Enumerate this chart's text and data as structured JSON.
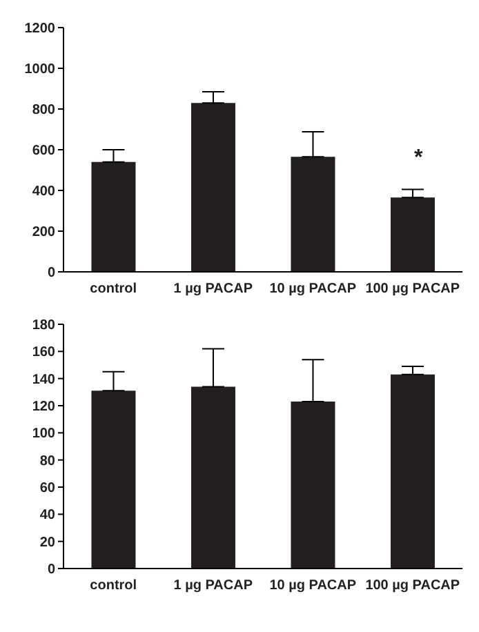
{
  "chart_data": [
    {
      "type": "bar",
      "categories": [
        "control",
        "1 µg PACAP",
        "10 µg PACAP",
        "100 µg PACAP"
      ],
      "values": [
        540,
        830,
        565,
        365
      ],
      "errors": [
        [
          540,
          600
        ],
        [
          830,
          885
        ],
        [
          565,
          688
        ],
        [
          365,
          405
        ]
      ],
      "color": "#231f20",
      "ylim": [
        0,
        1200
      ],
      "yticks": [
        0,
        200,
        400,
        600,
        800,
        1000,
        1200
      ],
      "grid": false,
      "legend": false,
      "annotations": [
        "*"
      ]
    },
    {
      "type": "bar",
      "categories": [
        "control",
        "1 µg PACAP",
        "10 µg PACAP",
        "100 µg PACAP"
      ],
      "values": [
        131,
        134,
        123,
        143
      ],
      "errors": [
        [
          131,
          145
        ],
        [
          134,
          162
        ],
        [
          123,
          154
        ],
        [
          143,
          149
        ]
      ],
      "color": "#231f20",
      "ylim": [
        0,
        180
      ],
      "yticks": [
        0,
        20,
        40,
        60,
        80,
        100,
        120,
        140,
        160,
        180
      ],
      "grid": false,
      "legend": false
    }
  ]
}
